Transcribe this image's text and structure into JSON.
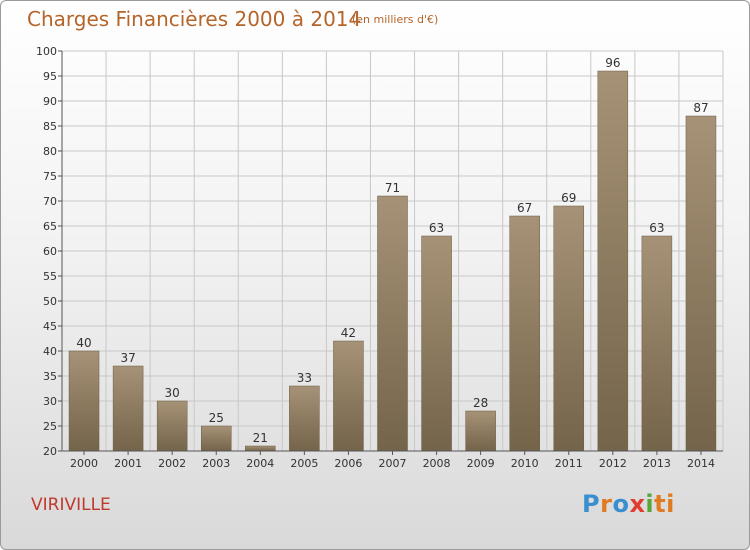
{
  "title": "Charges Financières 2000 à 2014",
  "subtitle": "(en milliers d'€)",
  "commune": "VIRIVILLE",
  "logo": {
    "p": "P",
    "r": "r",
    "o": "o",
    "x": "x",
    "i": "i",
    "t": "ti"
  },
  "colors": {
    "title": "#b5652a",
    "commune": "#c0392b",
    "bar_top": "#a69277",
    "bar_bottom": "#74644a",
    "grid": "#c8c8c8",
    "axis": "#555555"
  },
  "chart_data": {
    "type": "bar",
    "categories": [
      "2000",
      "2001",
      "2002",
      "2003",
      "2004",
      "2005",
      "2006",
      "2007",
      "2008",
      "2009",
      "2010",
      "2011",
      "2012",
      "2013",
      "2014"
    ],
    "values": [
      40,
      37,
      30,
      25,
      21,
      33,
      42,
      71,
      63,
      28,
      67,
      69,
      96,
      63,
      87
    ],
    "title": "Charges Financières 2000 à 2014",
    "subtitle": "(en milliers d'€)",
    "xlabel": "",
    "ylabel": "",
    "ylim": [
      20,
      100
    ],
    "yticks": [
      20,
      25,
      30,
      35,
      40,
      45,
      50,
      55,
      60,
      65,
      70,
      75,
      80,
      85,
      90,
      95,
      100
    ],
    "grid": true,
    "data_labels": true
  }
}
